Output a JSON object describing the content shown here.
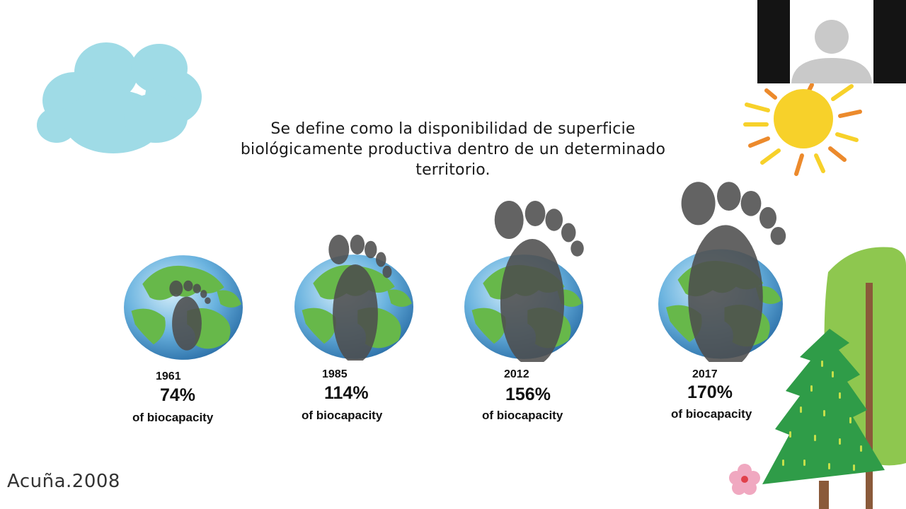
{
  "definition": {
    "line1": "Se define como la disponibilidad de superficie",
    "line2": "biológicamente productiva dentro de un determinado",
    "line3": "territorio."
  },
  "globes": [
    {
      "year": "1961",
      "percent": "74%",
      "label": "of biocapacity",
      "footprint_scale": 0.74
    },
    {
      "year": "1985",
      "percent": "114%",
      "label": "of biocapacity",
      "footprint_scale": 1.14
    },
    {
      "year": "2012",
      "percent": "156%",
      "label": "of biocapacity",
      "footprint_scale": 1.56
    },
    {
      "year": "2017",
      "percent": "170%",
      "label": "of biocapacity",
      "footprint_scale": 1.7
    }
  ],
  "citation": "Acuña.2008",
  "icons": {
    "cloud": "cloud-icon",
    "sun": "sun-icon",
    "tree": "tree-icon",
    "flower": "flower-icon",
    "avatar": "user-avatar-icon"
  },
  "colors": {
    "cloud": "#9fdbe6",
    "sun": "#f7d12a",
    "sun_rays_orange": "#ec8a2c",
    "ocean": "#5fa8d8",
    "land": "#67b84a",
    "footprint": "#555555",
    "tree_dark": "#2f9c48",
    "tree_light": "#8ec74f",
    "trunk": "#8a5a3a"
  }
}
